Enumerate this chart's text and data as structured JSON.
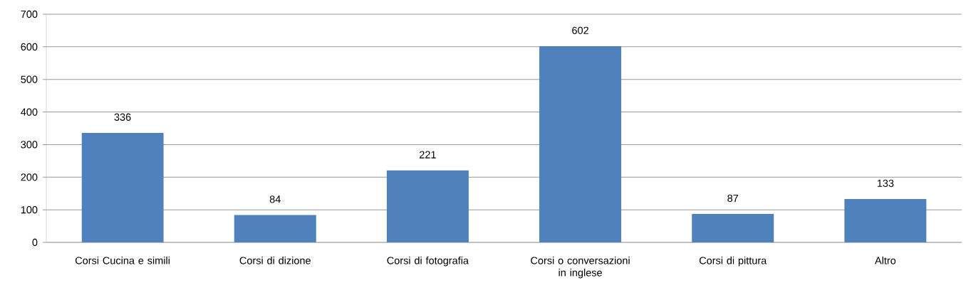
{
  "chart_data": {
    "type": "bar",
    "categories": [
      "Corsi Cucina e simili",
      "Corsi di dizione",
      "Corsi di fotografia",
      "Corsi o conversazioni in inglese",
      "Corsi di pittura",
      "Altro"
    ],
    "values": [
      336,
      84,
      221,
      602,
      87,
      133
    ],
    "color": "#4f81bd",
    "ylim": [
      0,
      700
    ],
    "yticks": [
      0,
      100,
      200,
      300,
      400,
      500,
      600,
      700
    ],
    "grid": "y",
    "data_labels": true
  }
}
